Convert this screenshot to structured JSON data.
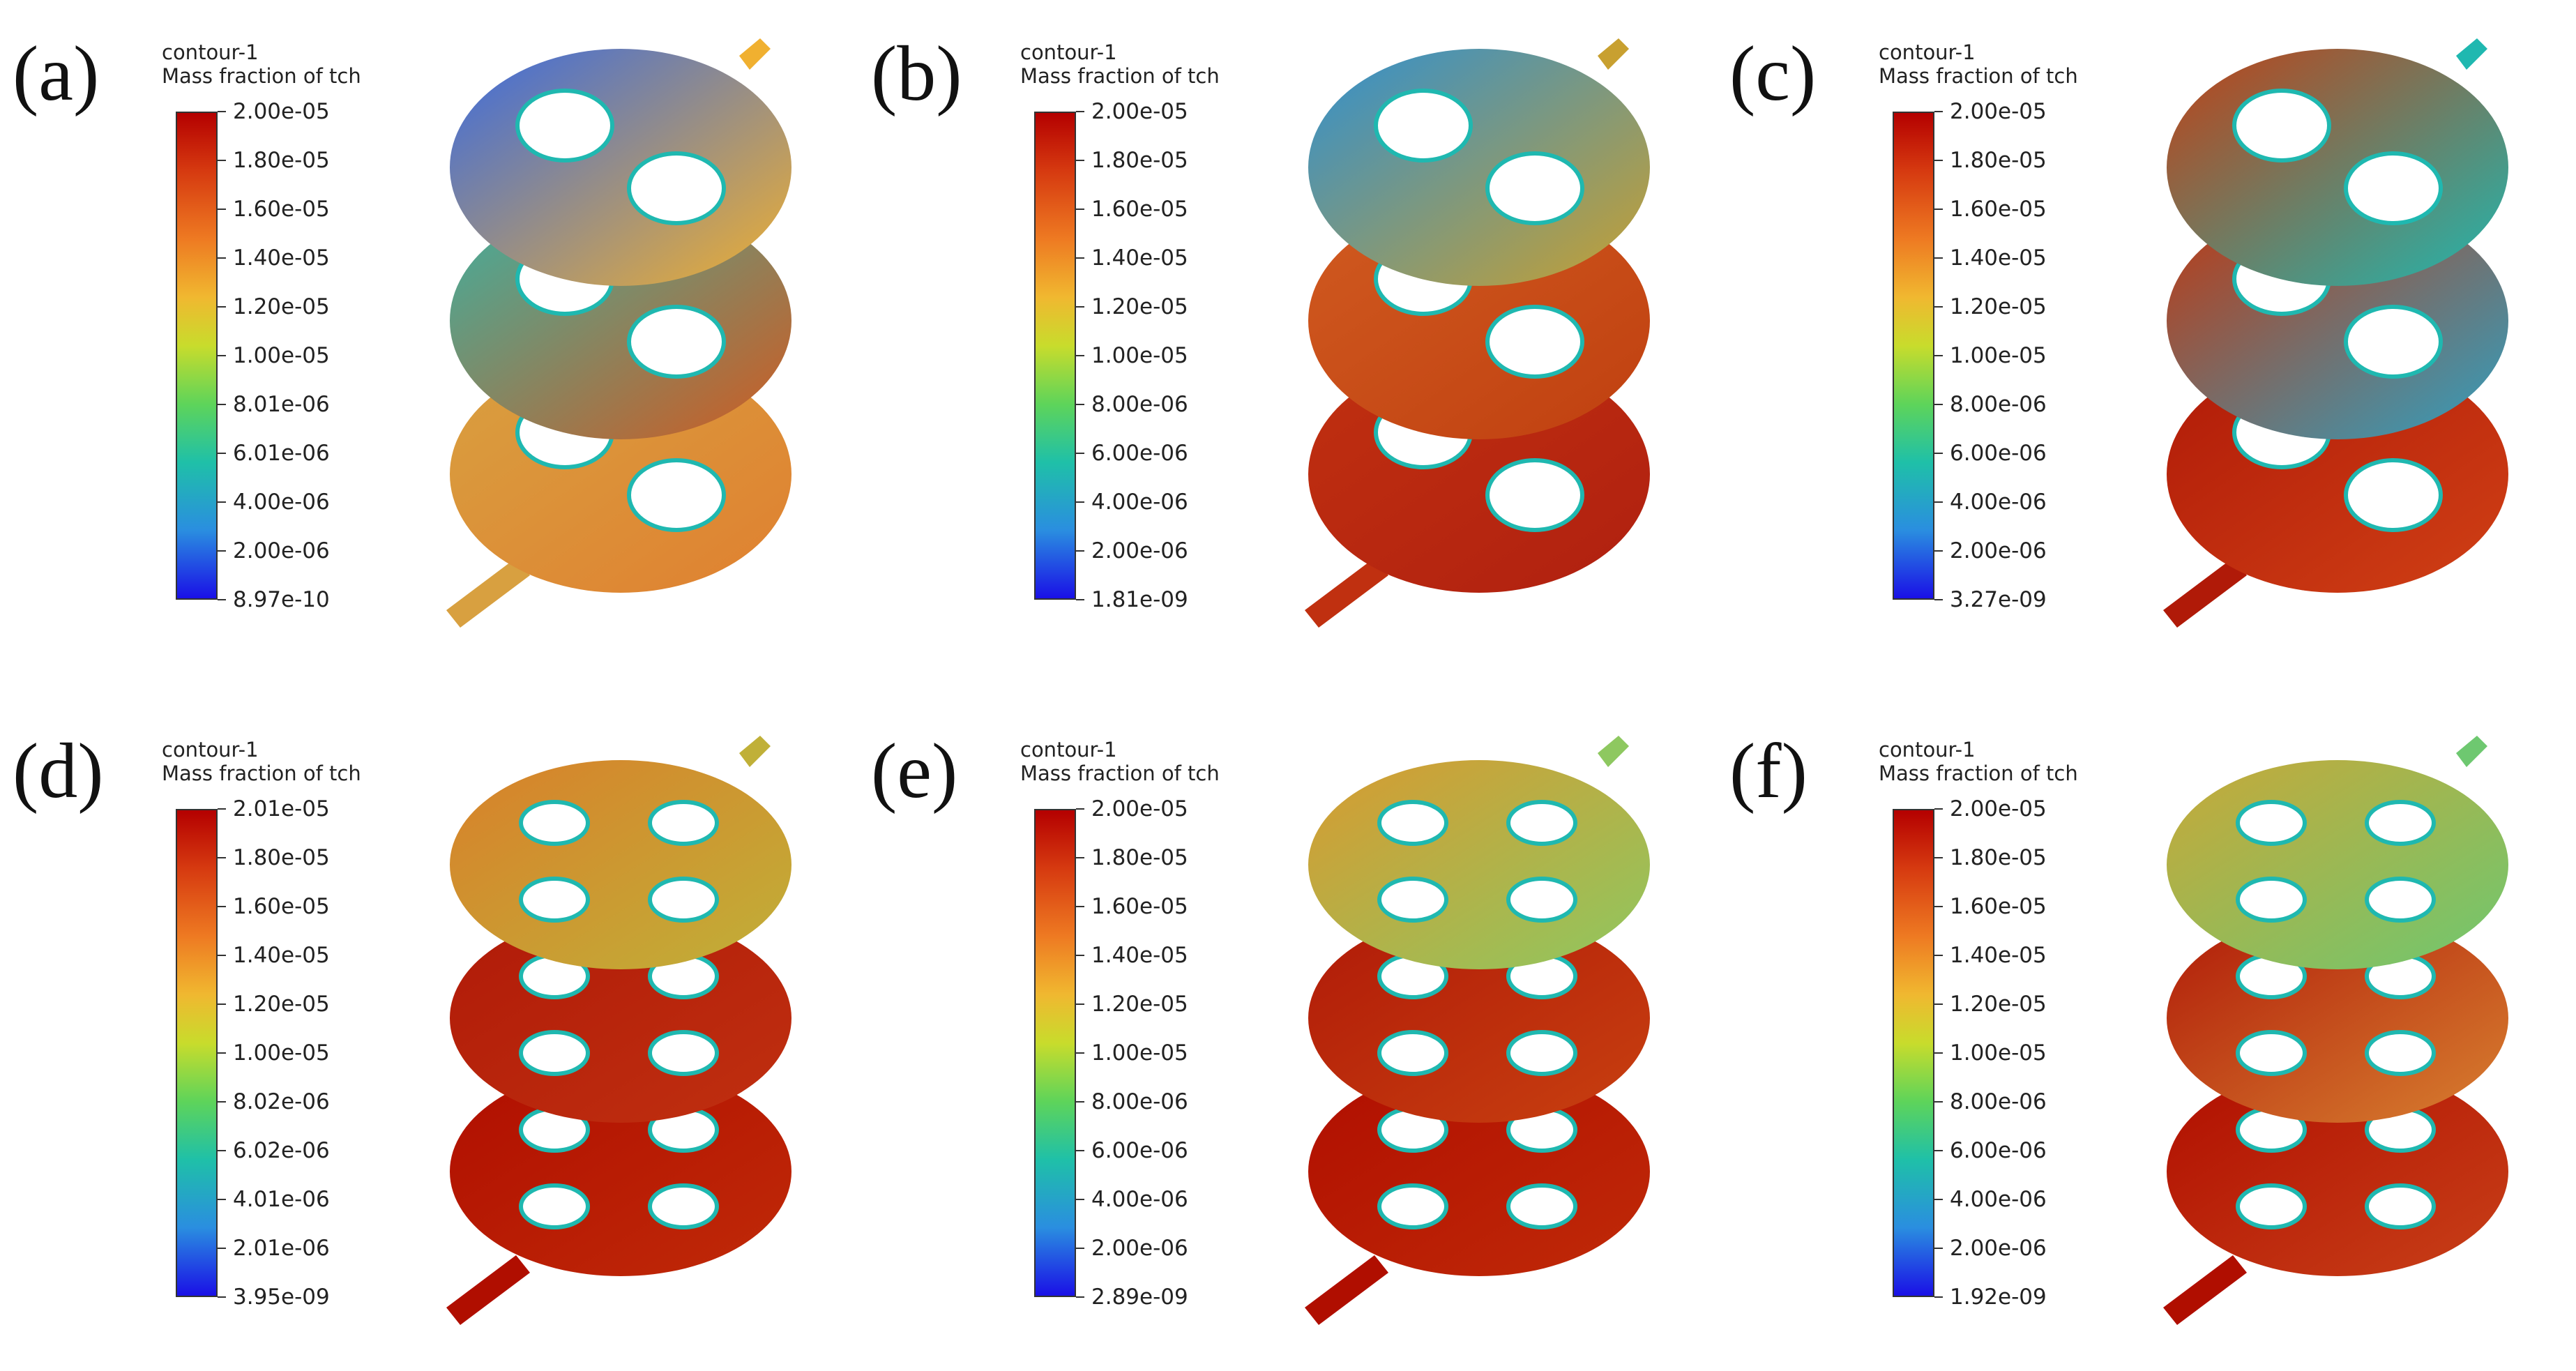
{
  "panels": [
    {
      "label": "(a)",
      "title1": "contour-1",
      "title2": "Mass fraction of tch",
      "ticks": [
        "2.00e-05",
        "1.80e-05",
        "1.60e-05",
        "1.40e-05",
        "1.20e-05",
        "1.00e-05",
        "8.01e-06",
        "6.01e-06",
        "4.00e-06",
        "2.00e-06",
        "8.97e-10"
      ],
      "holes": 2
    },
    {
      "label": "(b)",
      "title1": "contour-1",
      "title2": "Mass fraction of tch",
      "ticks": [
        "2.00e-05",
        "1.80e-05",
        "1.60e-05",
        "1.40e-05",
        "1.20e-05",
        "1.00e-05",
        "8.00e-06",
        "6.00e-06",
        "4.00e-06",
        "2.00e-06",
        "1.81e-09"
      ],
      "holes": 2
    },
    {
      "label": "(c)",
      "title1": "contour-1",
      "title2": "Mass fraction of tch",
      "ticks": [
        "2.00e-05",
        "1.80e-05",
        "1.60e-05",
        "1.40e-05",
        "1.20e-05",
        "1.00e-05",
        "8.00e-06",
        "6.00e-06",
        "4.00e-06",
        "2.00e-06",
        "3.27e-09"
      ],
      "holes": 2
    },
    {
      "label": "(d)",
      "title1": "contour-1",
      "title2": "Mass fraction of tch",
      "ticks": [
        "2.01e-05",
        "1.80e-05",
        "1.60e-05",
        "1.40e-05",
        "1.20e-05",
        "1.00e-05",
        "8.02e-06",
        "6.02e-06",
        "4.01e-06",
        "2.01e-06",
        "3.95e-09"
      ],
      "holes": 4
    },
    {
      "label": "(e)",
      "title1": "contour-1",
      "title2": "Mass fraction of tch",
      "ticks": [
        "2.00e-05",
        "1.80e-05",
        "1.60e-05",
        "1.40e-05",
        "1.20e-05",
        "1.00e-05",
        "8.00e-06",
        "6.00e-06",
        "4.00e-06",
        "2.00e-06",
        "2.89e-09"
      ],
      "holes": 4
    },
    {
      "label": "(f)",
      "title1": "contour-1",
      "title2": "Mass fraction of tch",
      "ticks": [
        "2.00e-05",
        "1.80e-05",
        "1.60e-05",
        "1.40e-05",
        "1.20e-05",
        "1.00e-05",
        "8.00e-06",
        "6.00e-06",
        "4.00e-06",
        "2.00e-06",
        "1.92e-09"
      ],
      "holes": 4
    }
  ],
  "colors": {
    "high": "#b40000",
    "mid": "#d4d84a",
    "low": "#1a10e6",
    "green": "#5ac870"
  }
}
